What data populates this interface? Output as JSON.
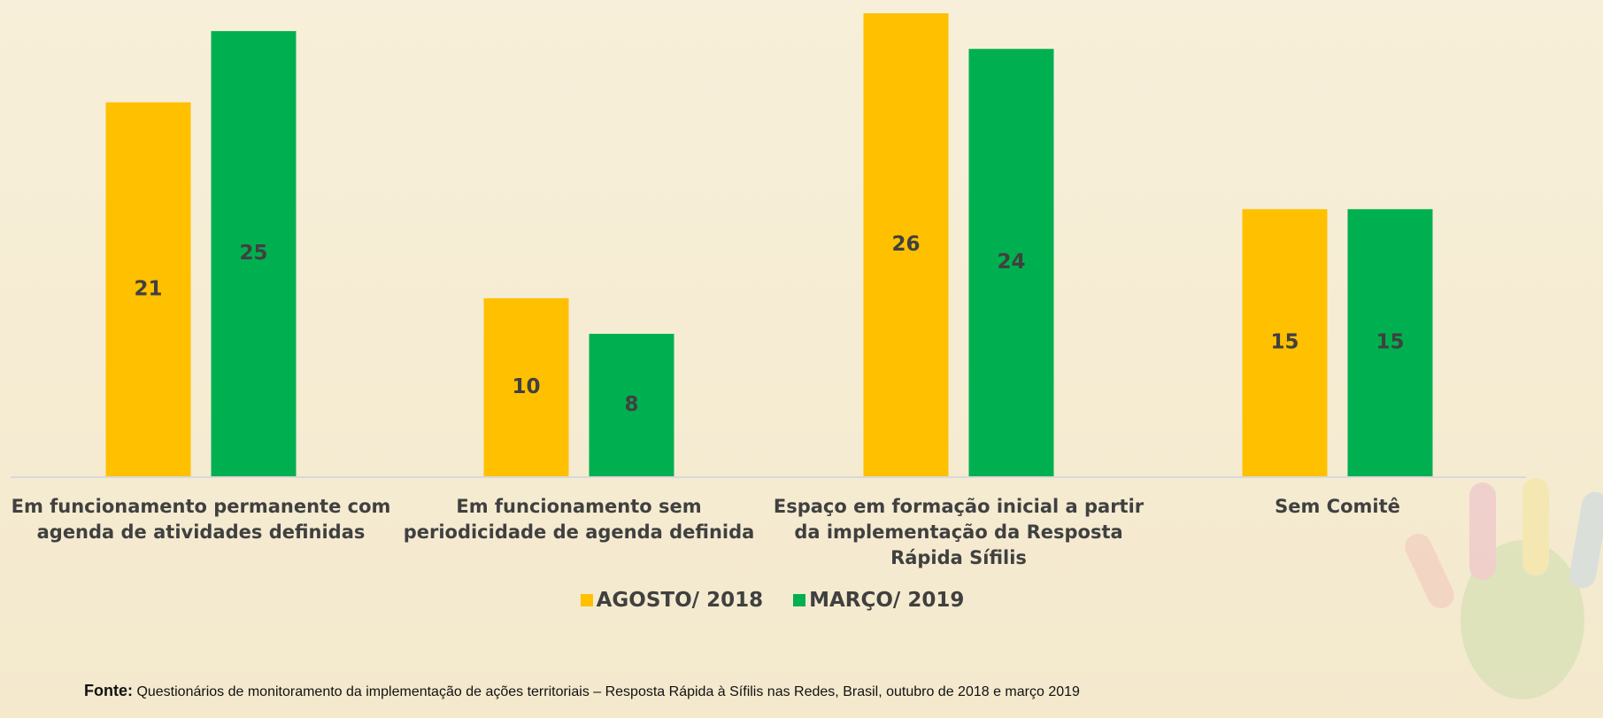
{
  "chart_data": {
    "type": "bar",
    "categories": [
      "Em funcionamento permanente com agenda de atividades definidas",
      "Em funcionamento sem periodicidade de agenda definida",
      "Espaço em formação inicial a partir da implementação da Resposta Rápida Sífilis",
      "Sem Comitê"
    ],
    "series": [
      {
        "name": "AGOSTO/ 2018",
        "color": "#FFC000",
        "values": [
          21,
          10,
          26,
          15
        ]
      },
      {
        "name": "MARÇO/ 2019",
        "color": "#00B050",
        "values": [
          25,
          8,
          24,
          15
        ]
      }
    ],
    "legend": "bottom"
  },
  "source": {
    "label": "Fonte:",
    "text": "Questionários de monitoramento da implementação de ações territoriais – Resposta Rápida à Sífilis nas Redes, Brasil, outubro de 2018 e março 2019"
  }
}
